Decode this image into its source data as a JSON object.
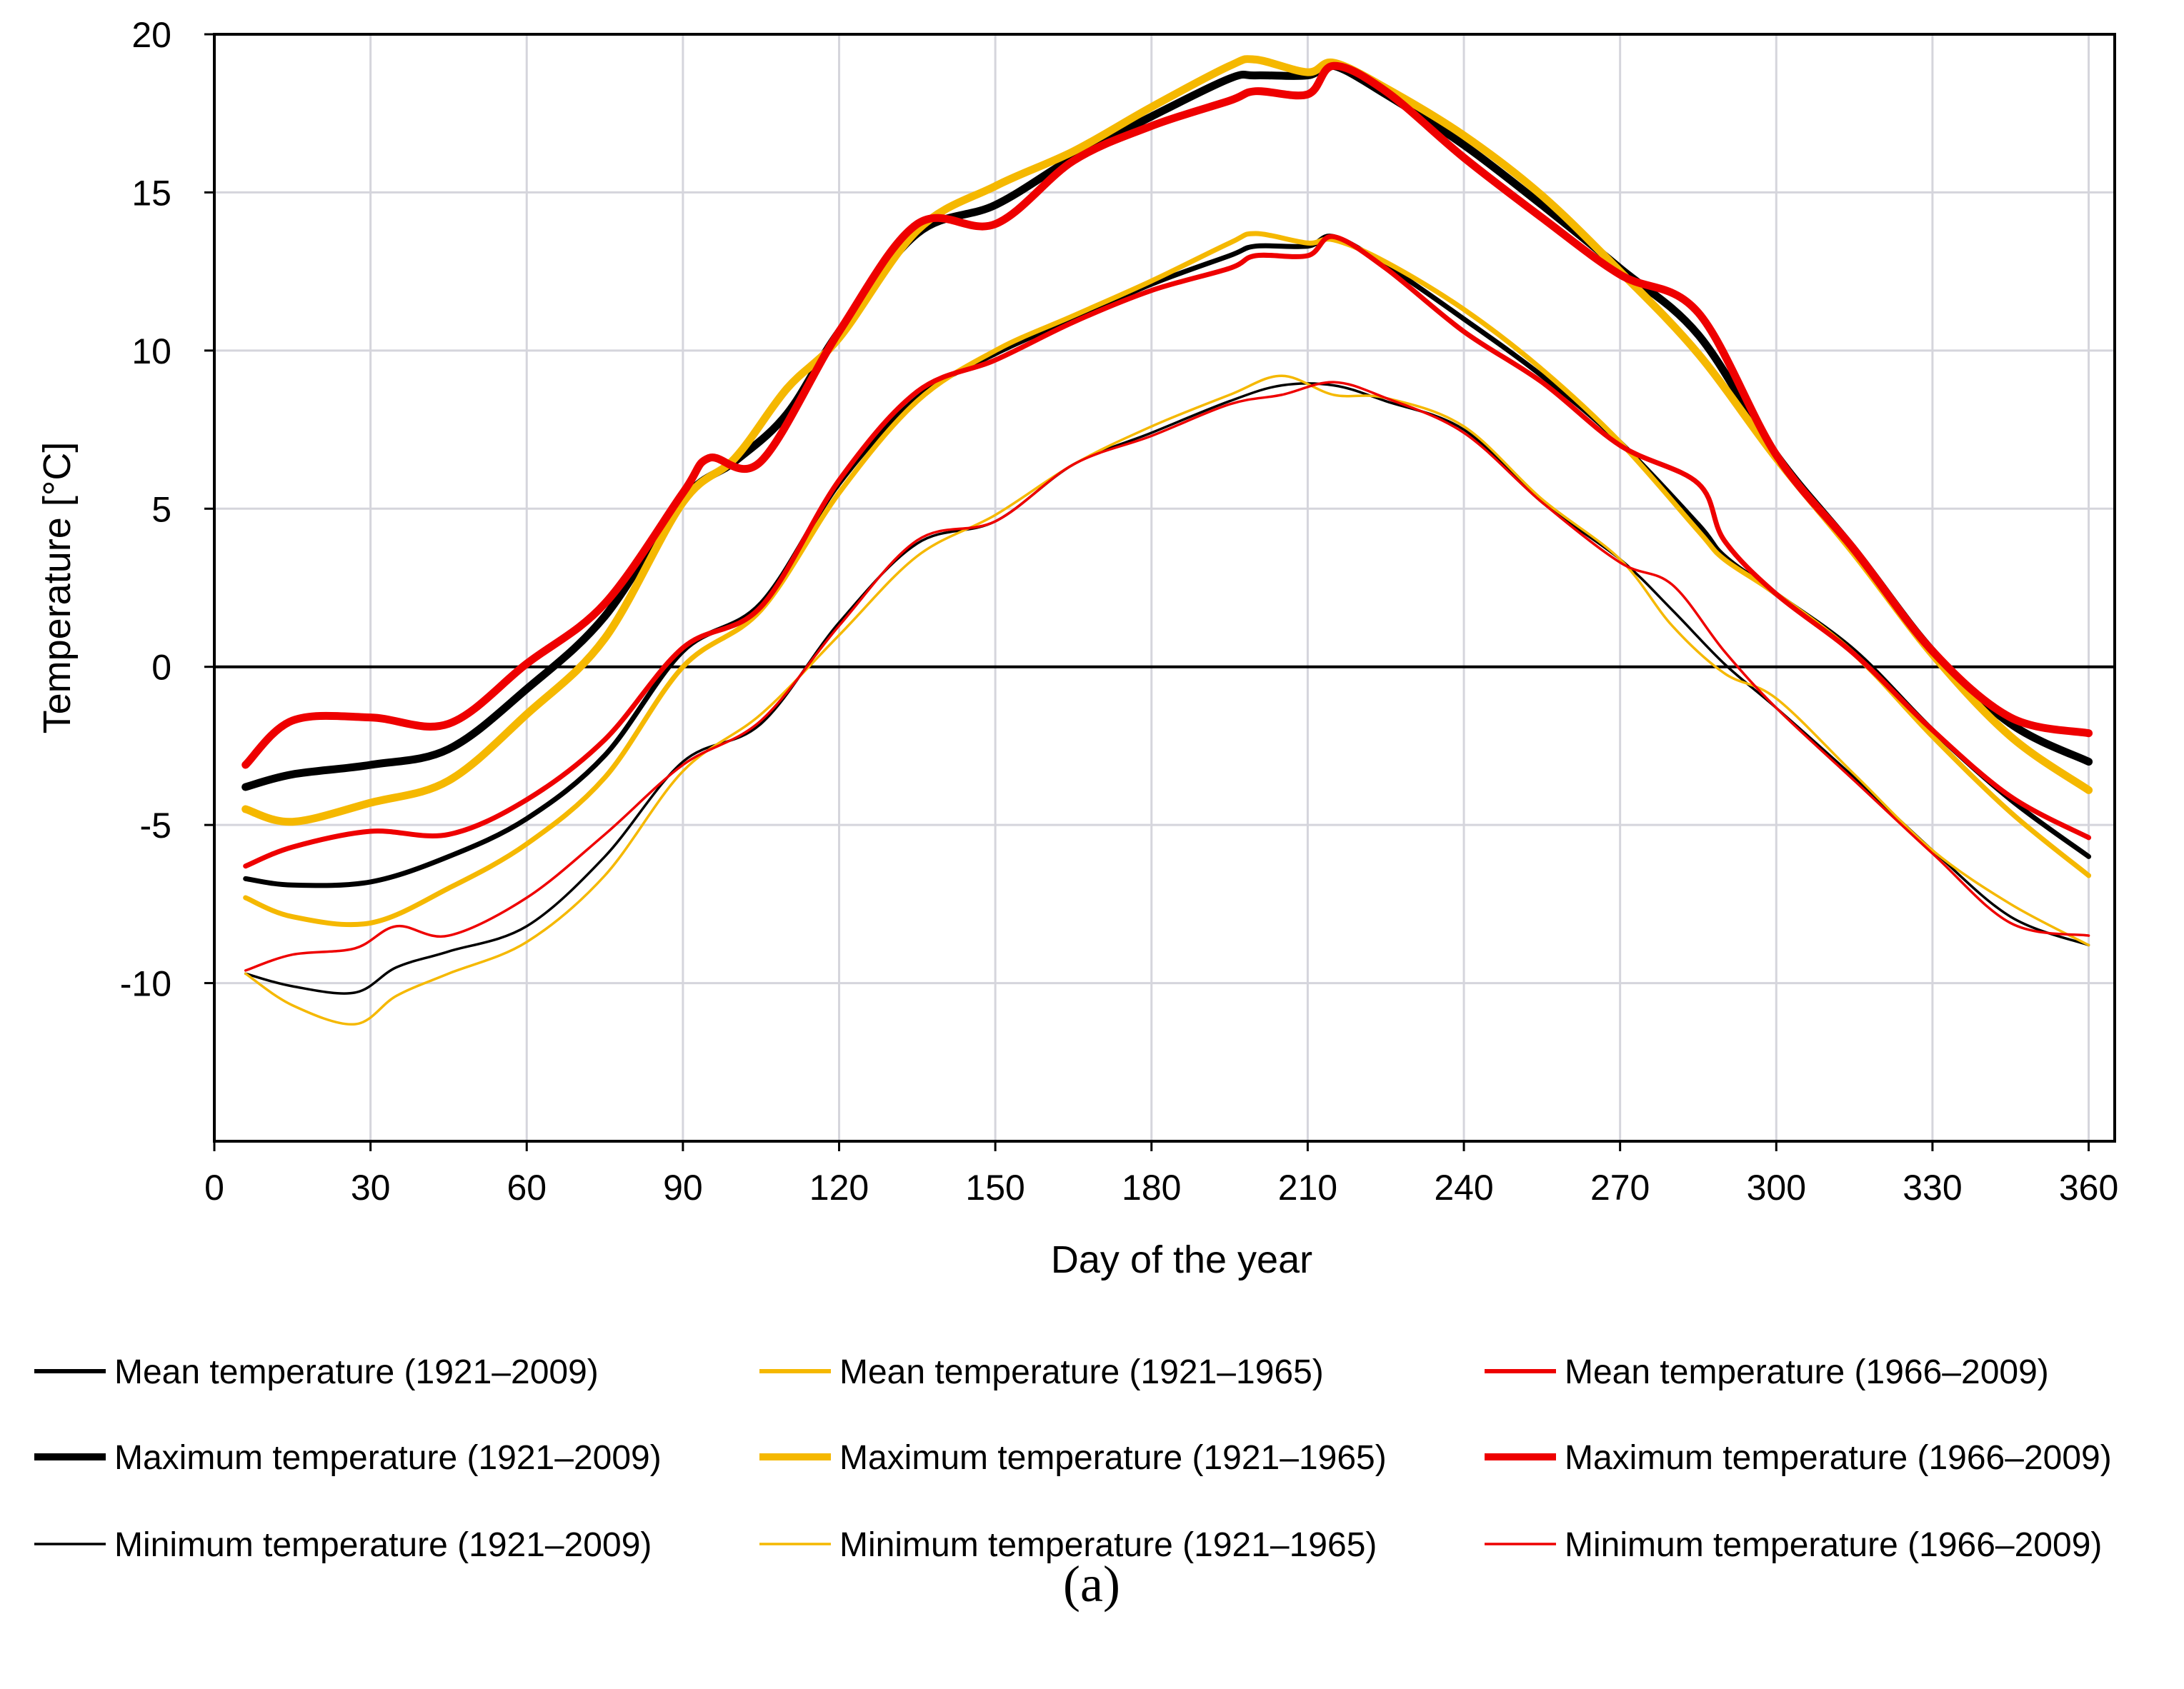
{
  "chart_data": {
    "type": "line",
    "title": "",
    "caption": "(a)",
    "xlabel": "Day of the year",
    "ylabel": "Temperature [°C]",
    "xlim": [
      0,
      365
    ],
    "ylim": [
      -15,
      20
    ],
    "xticks": [
      "0",
      "30",
      "60",
      "90",
      "120",
      "150",
      "180",
      "210",
      "240",
      "270",
      "300",
      "330",
      "360"
    ],
    "yticks": [
      "-10",
      "-5",
      "0",
      "5",
      "10",
      "15",
      "20"
    ],
    "grid": true,
    "legend_position": "bottom",
    "colors": {
      "p1921_2009": "#000000",
      "p1921_1965": "#f5b800",
      "p1966_2009": "#ee0000"
    },
    "series": [
      {
        "name": "Mean temperature (1921–2009)",
        "color": "#000000",
        "weight": "medium",
        "x": [
          6,
          15,
          30,
          45,
          60,
          75,
          90,
          105,
          120,
          135,
          150,
          165,
          180,
          195,
          200,
          210,
          215,
          225,
          240,
          255,
          270,
          285,
          290,
          300,
          315,
          330,
          345,
          360
        ],
        "y": [
          -6.7,
          -6.9,
          -6.8,
          -6.0,
          -4.8,
          -2.8,
          0.5,
          2.0,
          5.8,
          8.5,
          9.9,
          11.0,
          12.1,
          13.0,
          13.3,
          13.3,
          13.6,
          12.7,
          11.0,
          9.2,
          7.1,
          4.5,
          3.5,
          2.3,
          0.5,
          -2.0,
          -4.2,
          -6.0
        ]
      },
      {
        "name": "Mean temperature (1921–1965)",
        "color": "#f5b800",
        "weight": "medium",
        "x": [
          6,
          15,
          30,
          45,
          60,
          75,
          90,
          105,
          120,
          135,
          150,
          165,
          180,
          195,
          200,
          210,
          215,
          225,
          240,
          255,
          270,
          285,
          290,
          300,
          315,
          330,
          345,
          360
        ],
        "y": [
          -7.3,
          -7.9,
          -8.1,
          -7.0,
          -5.6,
          -3.5,
          0.0,
          1.8,
          5.5,
          8.4,
          10.0,
          11.1,
          12.2,
          13.4,
          13.7,
          13.4,
          13.5,
          12.8,
          11.3,
          9.4,
          7.1,
          4.3,
          3.4,
          2.3,
          0.4,
          -2.2,
          -4.6,
          -6.6
        ]
      },
      {
        "name": "Mean temperature (1966–2009)",
        "color": "#ee0000",
        "weight": "medium",
        "x": [
          6,
          15,
          30,
          45,
          60,
          75,
          90,
          105,
          120,
          135,
          150,
          165,
          180,
          195,
          200,
          210,
          215,
          225,
          240,
          255,
          270,
          285,
          290,
          300,
          315,
          330,
          345,
          360
        ],
        "y": [
          -6.3,
          -5.7,
          -5.2,
          -5.3,
          -4.2,
          -2.3,
          0.6,
          1.9,
          5.9,
          8.7,
          9.7,
          10.9,
          11.9,
          12.6,
          13.0,
          13.0,
          13.6,
          12.6,
          10.6,
          9.0,
          7.0,
          5.8,
          4.0,
          2.3,
          0.4,
          -2.0,
          -4.1,
          -5.4
        ]
      },
      {
        "name": "Maximum temperature (1921–2009)",
        "color": "#000000",
        "weight": "thick",
        "x": [
          6,
          15,
          30,
          45,
          60,
          75,
          90,
          100,
          110,
          120,
          135,
          150,
          165,
          180,
          195,
          200,
          210,
          215,
          225,
          240,
          255,
          270,
          285,
          300,
          315,
          330,
          345,
          360
        ],
        "y": [
          -3.8,
          -3.4,
          -3.1,
          -2.6,
          -0.7,
          1.6,
          5.3,
          6.5,
          8.0,
          10.6,
          13.7,
          14.6,
          16.1,
          17.4,
          18.6,
          18.7,
          18.7,
          19.0,
          18.1,
          16.5,
          14.6,
          12.6,
          10.5,
          6.7,
          3.7,
          0.5,
          -1.8,
          -3.0
        ]
      },
      {
        "name": "Maximum temperature (1921–1965)",
        "color": "#f5b800",
        "weight": "thick",
        "x": [
          6,
          15,
          30,
          45,
          60,
          75,
          90,
          100,
          110,
          120,
          135,
          150,
          165,
          180,
          195,
          200,
          210,
          215,
          225,
          240,
          255,
          270,
          285,
          300,
          315,
          330,
          345,
          360
        ],
        "y": [
          -4.5,
          -4.9,
          -4.3,
          -3.6,
          -1.5,
          0.9,
          5.2,
          6.6,
          8.8,
          10.4,
          13.8,
          15.2,
          16.3,
          17.7,
          19.0,
          19.2,
          18.8,
          19.1,
          18.3,
          16.8,
          14.9,
          12.5,
          9.9,
          6.6,
          3.6,
          0.4,
          -2.2,
          -3.9
        ]
      },
      {
        "name": "Maximum temperature (1966–2009)",
        "color": "#ee0000",
        "weight": "thick",
        "x": [
          6,
          15,
          30,
          45,
          60,
          75,
          90,
          95,
          105,
          120,
          135,
          150,
          165,
          180,
          195,
          200,
          210,
          215,
          225,
          240,
          255,
          270,
          285,
          300,
          315,
          330,
          345,
          360
        ],
        "y": [
          -3.1,
          -1.7,
          -1.6,
          -1.8,
          0.1,
          2.0,
          5.5,
          6.6,
          6.5,
          10.6,
          14.0,
          14.0,
          16.0,
          17.1,
          17.9,
          18.2,
          18.1,
          19.0,
          18.2,
          16.1,
          14.2,
          12.4,
          11.2,
          6.7,
          3.7,
          0.5,
          -1.6,
          -2.1
        ]
      },
      {
        "name": "Minimum temperature (1921–2009)",
        "color": "#000000",
        "weight": "thin",
        "x": [
          6,
          15,
          27,
          35,
          45,
          60,
          75,
          90,
          105,
          120,
          135,
          150,
          165,
          180,
          195,
          205,
          215,
          225,
          240,
          255,
          270,
          280,
          290,
          300,
          315,
          330,
          345,
          360
        ],
        "y": [
          -9.7,
          -10.1,
          -10.3,
          -9.5,
          -9.0,
          -8.2,
          -6.0,
          -3.0,
          -1.8,
          1.4,
          3.9,
          4.6,
          6.4,
          7.4,
          8.4,
          8.9,
          8.9,
          8.4,
          7.5,
          5.2,
          3.4,
          1.8,
          0.1,
          -1.3,
          -3.5,
          -5.8,
          -7.9,
          -8.8
        ]
      },
      {
        "name": "Minimum temperature (1921–1965)",
        "color": "#f5b800",
        "weight": "thin",
        "x": [
          6,
          15,
          27,
          35,
          45,
          60,
          75,
          90,
          105,
          120,
          135,
          150,
          165,
          180,
          195,
          205,
          215,
          225,
          240,
          255,
          270,
          280,
          290,
          300,
          315,
          330,
          345,
          360
        ],
        "y": [
          -9.7,
          -10.7,
          -11.3,
          -10.4,
          -9.7,
          -8.7,
          -6.6,
          -3.3,
          -1.5,
          1.0,
          3.5,
          4.8,
          6.4,
          7.6,
          8.6,
          9.2,
          8.6,
          8.5,
          7.6,
          5.3,
          3.4,
          1.3,
          -0.2,
          -1.0,
          -3.4,
          -5.8,
          -7.5,
          -8.8
        ]
      },
      {
        "name": "Minimum temperature (1966–2009)",
        "color": "#ee0000",
        "weight": "thin",
        "x": [
          6,
          15,
          27,
          35,
          45,
          60,
          75,
          90,
          105,
          120,
          135,
          150,
          165,
          180,
          195,
          205,
          215,
          225,
          240,
          255,
          270,
          280,
          290,
          300,
          315,
          330,
          345,
          360
        ],
        "y": [
          -9.6,
          -9.1,
          -8.9,
          -8.2,
          -8.5,
          -7.3,
          -5.3,
          -3.1,
          -1.7,
          1.3,
          4.0,
          4.6,
          6.4,
          7.3,
          8.3,
          8.6,
          9.0,
          8.5,
          7.4,
          5.2,
          3.3,
          2.6,
          0.5,
          -1.3,
          -3.6,
          -5.9,
          -8.1,
          -8.5
        ]
      }
    ]
  }
}
